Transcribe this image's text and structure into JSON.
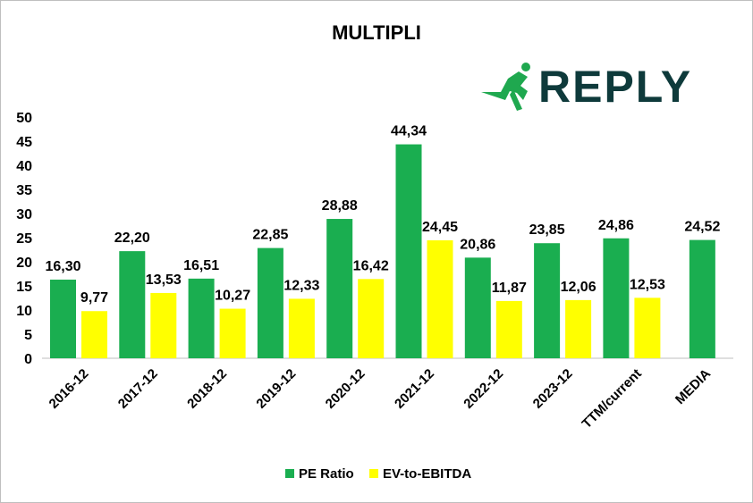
{
  "logo": {
    "text": "REPLY",
    "color": "#0e3a3b",
    "accent": "#1fa84f"
  },
  "chart_data": {
    "type": "bar",
    "title": "MULTIPLI",
    "xlabel": "",
    "ylabel": "",
    "ylim": [
      0,
      50
    ],
    "yticks": [
      0,
      5,
      10,
      15,
      20,
      25,
      30,
      35,
      40,
      45,
      50
    ],
    "categories": [
      "2016-12",
      "2017-12",
      "2018-12",
      "2019-12",
      "2020-12",
      "2021-12",
      "2022-12",
      "2023-12",
      "TTM/current",
      "MEDIA"
    ],
    "series": [
      {
        "name": "PE Ratio",
        "color": "#1aae50",
        "values": [
          16.3,
          22.2,
          16.51,
          22.85,
          28.88,
          44.34,
          20.86,
          23.85,
          24.86,
          24.52
        ],
        "labels": [
          "16,30",
          "22,20",
          "16,51",
          "22,85",
          "28,88",
          "44,34",
          "20,86",
          "23,85",
          "24,86",
          "24,52"
        ]
      },
      {
        "name": "EV-to-EBITDA",
        "color": "#ffff00",
        "values": [
          9.77,
          13.53,
          10.27,
          12.33,
          16.42,
          24.45,
          11.87,
          12.06,
          12.53,
          null
        ],
        "labels": [
          "9,77",
          "13,53",
          "10,27",
          "12,33",
          "16,42",
          "24,45",
          "11,87",
          "12,06",
          "12,53",
          null
        ]
      }
    ],
    "grid": false,
    "legend": "bottom"
  }
}
